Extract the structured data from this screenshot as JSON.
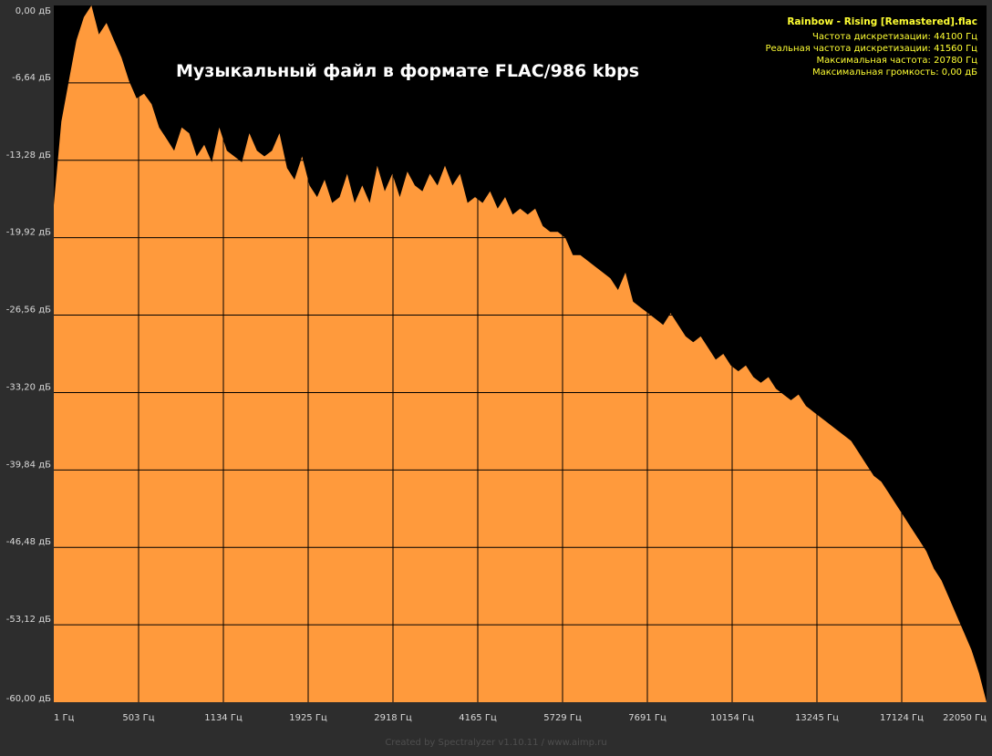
{
  "chart_data": {
    "type": "area",
    "title": "Музыкальный файл в формате FLAC/986 kbps",
    "info": {
      "file_name": "Rainbow - Rising [Remastered].flac",
      "lines": [
        "Частота дискретизации: 44100 Гц",
        "Реальная частота дискретизации: 41560 Гц",
        "Максимальная частота: 20780 Гц",
        "Максимальная громкость: 0,00 дБ"
      ]
    },
    "y_ticks": [
      "0,00 дБ",
      "-6,64 дБ",
      "-13,28 дБ",
      "-19,92 дБ",
      "-26,56 дБ",
      "-33,20 дБ",
      "-39,84 дБ",
      "-46,48 дБ",
      "-53,12 дБ",
      "-60,00 дБ"
    ],
    "x_ticks": [
      "1 Гц",
      "503 Гц",
      "1134 Гц",
      "1925 Гц",
      "2918 Гц",
      "4165 Гц",
      "5729 Гц",
      "7691 Гц",
      "10154 Гц",
      "13245 Гц",
      "17124 Гц",
      "22050 Гц"
    ],
    "ylim": [
      -60,
      0
    ],
    "series": [
      {
        "values": [
          -17.2,
          -10.0,
          -6.5,
          -3.0,
          -1.0,
          0.0,
          -2.5,
          -1.5,
          -3.0,
          -4.5,
          -6.5,
          -8.0,
          -7.6,
          -8.5,
          -10.5,
          -11.5,
          -12.5,
          -10.5,
          -11.0,
          -13.0,
          -12.0,
          -13.5,
          -10.5,
          -12.5,
          -13.0,
          -13.5,
          -11.0,
          -12.5,
          -13.0,
          -12.5,
          -11.0,
          -14.0,
          -15.0,
          -13.0,
          -15.5,
          -16.5,
          -15.0,
          -17.0,
          -16.5,
          -14.5,
          -17.0,
          -15.5,
          -17.0,
          -13.8,
          -16.0,
          -14.5,
          -16.5,
          -14.3,
          -15.5,
          -16.0,
          -14.5,
          -15.5,
          -13.8,
          -15.5,
          -14.5,
          -17.0,
          -16.5,
          -17.0,
          -16.0,
          -17.5,
          -16.5,
          -18.0,
          -17.5,
          -18.0,
          -17.5,
          -19.0,
          -19.5,
          -19.5,
          -20.0,
          -21.5,
          -21.5,
          -22.0,
          -22.5,
          -23.0,
          -23.5,
          -24.5,
          -23.0,
          -25.5,
          -26.0,
          -26.5,
          -27.0,
          -27.5,
          -26.5,
          -27.5,
          -28.5,
          -29.0,
          -28.5,
          -29.5,
          -30.5,
          -30.0,
          -31.0,
          -31.5,
          -31.0,
          -32.0,
          -32.5,
          -32.0,
          -33.0,
          -33.5,
          -34.0,
          -33.5,
          -34.5,
          -35.0,
          -35.5,
          -36.0,
          -36.5,
          -37.0,
          -37.5,
          -38.5,
          -39.5,
          -40.5,
          -41.0,
          -42.0,
          -43.0,
          -44.0,
          -45.0,
          -46.0,
          -47.0,
          -48.5,
          -49.5,
          -51.0,
          -52.5,
          -54.0,
          -55.5,
          -57.5,
          -60.0
        ]
      }
    ],
    "colors": {
      "fill": "#ff9a3c",
      "background": "#000000",
      "frame": "#2d2d2d",
      "grid": "#000000",
      "info_text": "#ffff33"
    },
    "grid": true
  },
  "footer": {
    "credit": "Created by Spectralyzer v1.10.11 / www.aimp.ru"
  }
}
